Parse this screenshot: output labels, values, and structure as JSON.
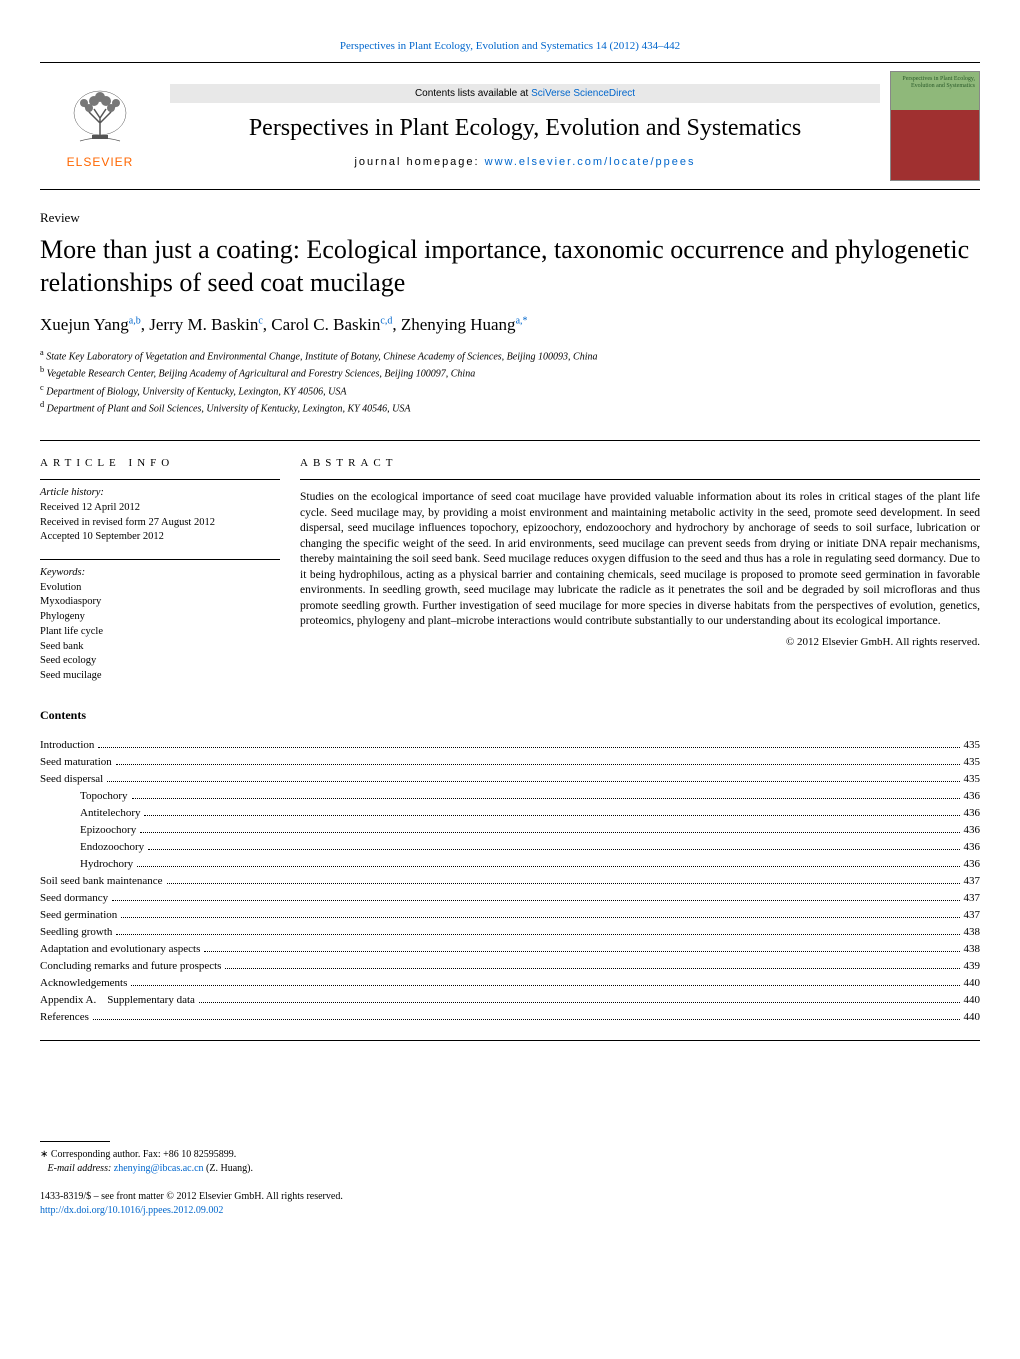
{
  "header": {
    "citation": "Perspectives in Plant Ecology, Evolution and Systematics 14 (2012) 434–442",
    "contents_prefix": "Contents lists available at ",
    "contents_link": "SciVerse ScienceDirect",
    "journal_title": "Perspectives in Plant Ecology, Evolution and Systematics",
    "homepage_prefix": "journal homepage: ",
    "homepage_link": "www.elsevier.com/locate/ppees",
    "publisher": "ELSEVIER",
    "cover_text": "Perspectives in Plant Ecology, Evolution and Systematics"
  },
  "article": {
    "type": "Review",
    "title": "More than just a coating: Ecological importance, taxonomic occurrence and phylogenetic relationships of seed coat mucilage",
    "authors_html": "Xuejun Yang<sup>a,b</sup>, Jerry M. Baskin<sup>c</sup>, Carol C. Baskin<sup>c,d</sup>, Zhenying Huang<sup>a,*</sup>",
    "affiliations": [
      {
        "sup": "a",
        "text": "State Key Laboratory of Vegetation and Environmental Change, Institute of Botany, Chinese Academy of Sciences, Beijing 100093, China"
      },
      {
        "sup": "b",
        "text": "Vegetable Research Center, Beijing Academy of Agricultural and Forestry Sciences, Beijing 100097, China"
      },
      {
        "sup": "c",
        "text": "Department of Biology, University of Kentucky, Lexington, KY 40506, USA"
      },
      {
        "sup": "d",
        "text": "Department of Plant and Soil Sciences, University of Kentucky, Lexington, KY 40546, USA"
      }
    ]
  },
  "info": {
    "section_label": "article info",
    "history_label": "Article history:",
    "history": [
      "Received 12 April 2012",
      "Received in revised form 27 August 2012",
      "Accepted 10 September 2012"
    ],
    "keywords_label": "Keywords:",
    "keywords": [
      "Evolution",
      "Myxodiaspory",
      "Phylogeny",
      "Plant life cycle",
      "Seed bank",
      "Seed ecology",
      "Seed mucilage"
    ]
  },
  "abstract": {
    "section_label": "abstract",
    "text": "Studies on the ecological importance of seed coat mucilage have provided valuable information about its roles in critical stages of the plant life cycle. Seed mucilage may, by providing a moist environment and maintaining metabolic activity in the seed, promote seed development. In seed dispersal, seed mucilage influences topochory, epizoochory, endozoochory and hydrochory by anchorage of seeds to soil surface, lubrication or changing the specific weight of the seed. In arid environments, seed mucilage can prevent seeds from drying or initiate DNA repair mechanisms, thereby maintaining the soil seed bank. Seed mucilage reduces oxygen diffusion to the seed and thus has a role in regulating seed dormancy. Due to it being hydrophilous, acting as a physical barrier and containing chemicals, seed mucilage is proposed to promote seed germination in favorable environments. In seedling growth, seed mucilage may lubricate the radicle as it penetrates the soil and be degraded by soil microfloras and thus promote seedling growth. Further investigation of seed mucilage for more species in diverse habitats from the perspectives of evolution, genetics, proteomics, phylogeny and plant–microbe interactions would contribute substantially to our understanding about its ecological importance.",
    "copyright": "© 2012 Elsevier GmbH. All rights reserved."
  },
  "contents": {
    "heading": "Contents",
    "items": [
      {
        "label": "Introduction",
        "page": "435",
        "indent": 0
      },
      {
        "label": "Seed maturation",
        "page": "435",
        "indent": 0
      },
      {
        "label": "Seed dispersal",
        "page": "435",
        "indent": 0
      },
      {
        "label": "Topochory",
        "page": "436",
        "indent": 1
      },
      {
        "label": "Antitelechory",
        "page": "436",
        "indent": 1
      },
      {
        "label": "Epizoochory",
        "page": "436",
        "indent": 1
      },
      {
        "label": "Endozoochory",
        "page": "436",
        "indent": 1
      },
      {
        "label": "Hydrochory",
        "page": "436",
        "indent": 1
      },
      {
        "label": "Soil seed bank maintenance",
        "page": "437",
        "indent": 0
      },
      {
        "label": "Seed dormancy",
        "page": "437",
        "indent": 0
      },
      {
        "label": "Seed germination",
        "page": "437",
        "indent": 0
      },
      {
        "label": "Seedling growth",
        "page": "438",
        "indent": 0
      },
      {
        "label": "Adaptation and evolutionary aspects",
        "page": "438",
        "indent": 0
      },
      {
        "label": "Concluding remarks and future prospects",
        "page": "439",
        "indent": 0
      },
      {
        "label": "Acknowledgements",
        "page": "440",
        "indent": 0
      },
      {
        "label": "Appendix A. Supplementary data",
        "page": "440",
        "indent": 0
      },
      {
        "label": "References",
        "page": "440",
        "indent": 0
      }
    ]
  },
  "footer": {
    "corr_marker": "∗",
    "corr_text": "Corresponding author. Fax: +86 10 82595899.",
    "email_label": "E-mail address: ",
    "email": "zhenying@ibcas.ac.cn",
    "email_suffix": " (Z. Huang).",
    "issn_line": "1433-8319/$ – see front matter © 2012 Elsevier GmbH. All rights reserved.",
    "doi": "http://dx.doi.org/10.1016/j.ppees.2012.09.002"
  },
  "colors": {
    "link": "#0066cc",
    "publisher": "#ff6600"
  }
}
